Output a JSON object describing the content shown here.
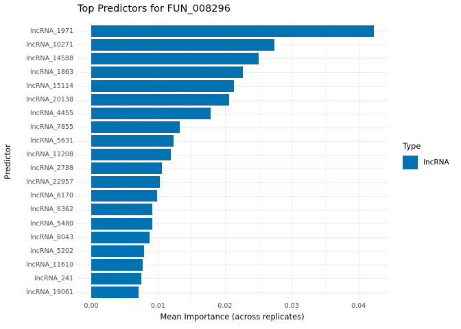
{
  "title": "Top Predictors for FUN_008296",
  "legend": {
    "title": "Type",
    "items": [
      {
        "label": "lncRNA",
        "color": "#0072B2"
      }
    ]
  },
  "colors": {
    "bar": "#0072B2",
    "grid_major": "#ebebeb",
    "grid_minor": "#f4f4f4",
    "tick_text": "#4d4d4d",
    "title_text": "#000000"
  },
  "chart_data": {
    "type": "bar",
    "orientation": "horizontal",
    "title": "Top Predictors for FUN_008296",
    "xlabel": "Mean Importance (across replicates)",
    "ylabel": "Predictor",
    "legend_position": "right",
    "grid": true,
    "xlim": [
      -0.0021,
      0.0444
    ],
    "x_ticks": [
      {
        "label": "0.00",
        "value": 0.0
      },
      {
        "label": "0.01",
        "value": 0.01
      },
      {
        "label": "0.02",
        "value": 0.02
      },
      {
        "label": "0.03",
        "value": 0.03
      },
      {
        "label": "0.04",
        "value": 0.04
      }
    ],
    "categories": [
      "lncRNA_1971",
      "lncRNA_10271",
      "lncRNA_14588",
      "lncRNA_1863",
      "lncRNA_15114",
      "lncRNA_20138",
      "lncRNA_4455",
      "lncRNA_7855",
      "lncRNA_5631",
      "lncRNA_11208",
      "lncRNA_2788",
      "lncRNA_22957",
      "lncRNA_6170",
      "lncRNA_8362",
      "lncRNA_5480",
      "lncRNA_8043",
      "lncRNA_5202",
      "lncRNA_11610",
      "lncRNA_241",
      "lncRNA_19061"
    ],
    "series": [
      {
        "name": "lncRNA",
        "color": "#0072B2",
        "values": [
          0.0423,
          0.0274,
          0.025,
          0.0227,
          0.0214,
          0.0206,
          0.0179,
          0.0132,
          0.0123,
          0.0119,
          0.0106,
          0.0103,
          0.0099,
          0.0091,
          0.0091,
          0.0087,
          0.0079,
          0.0077,
          0.0075,
          0.0071
        ]
      }
    ]
  }
}
